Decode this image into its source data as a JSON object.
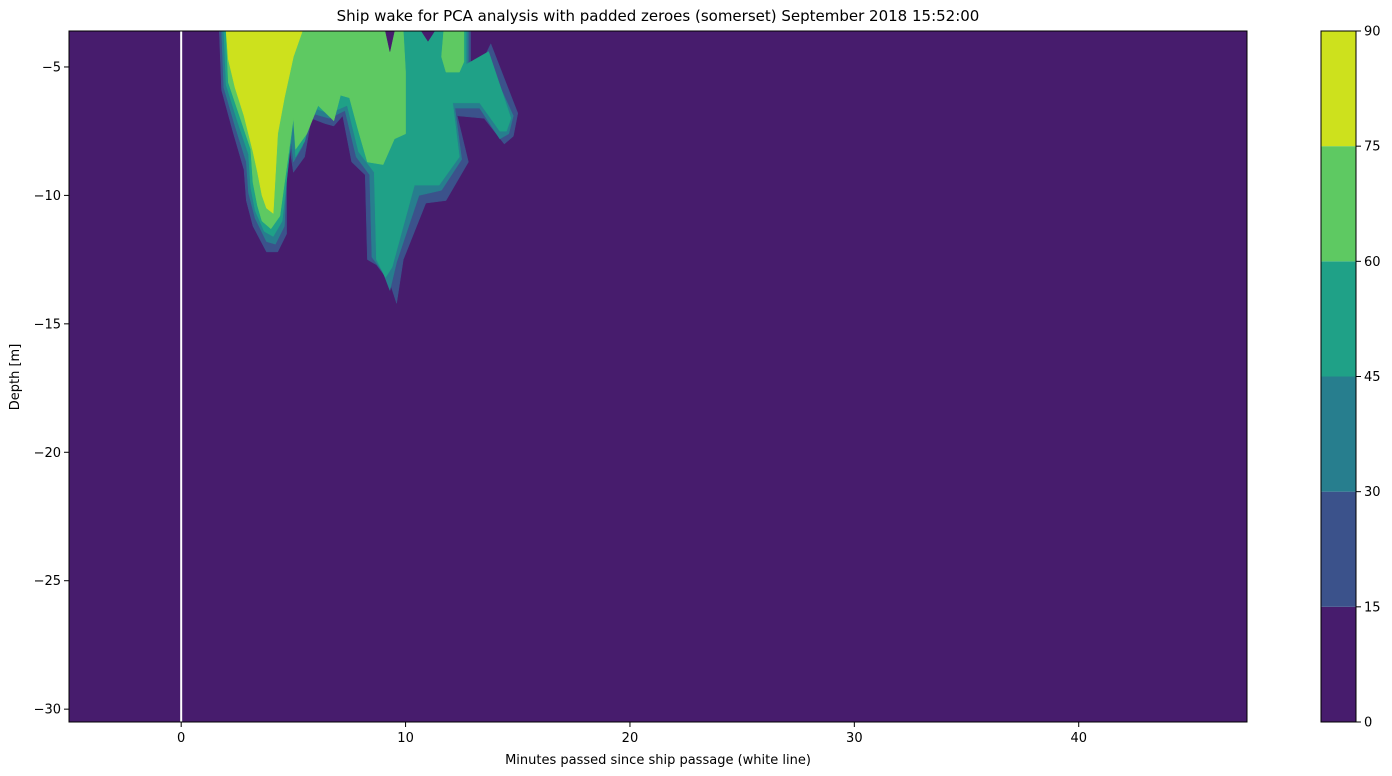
{
  "chart_data": {
    "type": "heatmap",
    "subtype": "filled-contour",
    "title": "Ship wake for PCA analysis with padded zeroes (somerset) September 2018 15:52:00",
    "xlabel": "Minutes passed since ship passage (white line)",
    "ylabel": "Depth [m]",
    "xlim": [
      -5,
      47.5
    ],
    "ylim": [
      -30.5,
      -3.6
    ],
    "xticks": [
      0,
      10,
      20,
      30,
      40
    ],
    "yticks": [
      -5,
      -10,
      -15,
      -20,
      -25,
      -30
    ],
    "grid": false,
    "marker_line": {
      "x": 0,
      "color": "#ffffff"
    },
    "colorbar": {
      "levels": [
        0,
        15,
        30,
        45,
        60,
        75,
        90
      ],
      "colors": [
        "#471c6d",
        "#3b528b",
        "#277e8e",
        "#1fa187",
        "#5ec962",
        "#cde11d"
      ]
    },
    "contour_regions": [
      {
        "level_min": 15,
        "points": [
          [
            1.7,
            -3.6
          ],
          [
            12.9,
            -3.6
          ],
          [
            12.9,
            -5.2
          ],
          [
            13.3,
            -5.0
          ],
          [
            13.8,
            -4.1
          ],
          [
            15.0,
            -6.8
          ],
          [
            14.8,
            -7.7
          ],
          [
            14.4,
            -8.0
          ],
          [
            13.5,
            -7.0
          ],
          [
            12.3,
            -6.9
          ],
          [
            12.8,
            -8.7
          ],
          [
            11.8,
            -10.2
          ],
          [
            10.9,
            -10.3
          ],
          [
            9.9,
            -12.5
          ],
          [
            9.6,
            -14.2
          ],
          [
            9.3,
            -13.4
          ],
          [
            8.7,
            -12.7
          ],
          [
            8.3,
            -12.5
          ],
          [
            8.2,
            -9.2
          ],
          [
            7.6,
            -8.7
          ],
          [
            7.2,
            -6.9
          ],
          [
            6.8,
            -7.3
          ],
          [
            6.4,
            -7.2
          ],
          [
            5.8,
            -7.0
          ],
          [
            5.5,
            -8.5
          ],
          [
            5.0,
            -9.1
          ],
          [
            4.7,
            -7.3
          ],
          [
            4.7,
            -11.5
          ],
          [
            4.3,
            -12.2
          ],
          [
            3.8,
            -12.2
          ],
          [
            3.2,
            -11.2
          ],
          [
            2.9,
            -10.2
          ],
          [
            2.8,
            -9.0
          ],
          [
            2.3,
            -7.5
          ],
          [
            1.8,
            -5.9
          ]
        ]
      },
      {
        "level_min": 30,
        "points": [
          [
            1.8,
            -3.6
          ],
          [
            12.8,
            -3.6
          ],
          [
            12.8,
            -5.0
          ],
          [
            13.6,
            -4.6
          ],
          [
            14.8,
            -6.9
          ],
          [
            14.6,
            -7.6
          ],
          [
            14.2,
            -7.8
          ],
          [
            13.3,
            -6.6
          ],
          [
            12.2,
            -6.6
          ],
          [
            12.5,
            -8.6
          ],
          [
            11.6,
            -9.8
          ],
          [
            10.6,
            -10.0
          ],
          [
            9.6,
            -12.6
          ],
          [
            9.3,
            -13.7
          ],
          [
            9.0,
            -13.0
          ],
          [
            8.5,
            -12.4
          ],
          [
            8.4,
            -9.2
          ],
          [
            7.8,
            -8.5
          ],
          [
            7.3,
            -6.7
          ],
          [
            6.6,
            -7.0
          ],
          [
            5.8,
            -6.8
          ],
          [
            5.4,
            -8.1
          ],
          [
            5.0,
            -8.7
          ],
          [
            4.8,
            -7.1
          ],
          [
            4.6,
            -11.2
          ],
          [
            4.2,
            -11.9
          ],
          [
            3.8,
            -11.8
          ],
          [
            3.3,
            -10.9
          ],
          [
            3.0,
            -9.9
          ],
          [
            2.9,
            -8.7
          ],
          [
            2.4,
            -7.3
          ],
          [
            1.9,
            -5.8
          ]
        ]
      },
      {
        "level_min": 45,
        "points": [
          [
            1.9,
            -3.6
          ],
          [
            12.7,
            -3.6
          ],
          [
            12.7,
            -4.9
          ],
          [
            13.7,
            -4.4
          ],
          [
            14.7,
            -7.0
          ],
          [
            14.5,
            -7.5
          ],
          [
            14.2,
            -7.5
          ],
          [
            13.3,
            -6.4
          ],
          [
            12.1,
            -6.4
          ],
          [
            12.4,
            -8.5
          ],
          [
            11.5,
            -9.6
          ],
          [
            10.4,
            -9.6
          ],
          [
            9.4,
            -12.8
          ],
          [
            9.1,
            -13.2
          ],
          [
            8.7,
            -12.5
          ],
          [
            8.6,
            -9.1
          ],
          [
            7.9,
            -8.3
          ],
          [
            7.4,
            -6.5
          ],
          [
            6.6,
            -6.8
          ],
          [
            5.9,
            -6.6
          ],
          [
            5.5,
            -7.9
          ],
          [
            5.1,
            -8.5
          ],
          [
            5.0,
            -7.0
          ],
          [
            4.5,
            -11.0
          ],
          [
            4.1,
            -11.6
          ],
          [
            3.7,
            -11.4
          ],
          [
            3.3,
            -10.6
          ],
          [
            3.1,
            -9.7
          ],
          [
            3.0,
            -8.4
          ],
          [
            2.5,
            -7.1
          ],
          [
            2.0,
            -5.7
          ]
        ]
      },
      {
        "level_min": 60,
        "points": [
          [
            2.0,
            -3.6
          ],
          [
            9.9,
            -3.6
          ],
          [
            10.0,
            -5.2
          ],
          [
            10.0,
            -7.6
          ],
          [
            9.5,
            -7.8
          ],
          [
            9.0,
            -8.8
          ],
          [
            8.3,
            -8.7
          ],
          [
            7.9,
            -7.5
          ],
          [
            7.5,
            -6.2
          ],
          [
            7.1,
            -6.1
          ],
          [
            6.8,
            -7.1
          ],
          [
            6.1,
            -6.5
          ],
          [
            5.6,
            -7.6
          ],
          [
            5.1,
            -8.2
          ],
          [
            5.0,
            -7.0
          ],
          [
            4.4,
            -10.8
          ],
          [
            4.0,
            -11.3
          ],
          [
            3.6,
            -11.0
          ],
          [
            3.4,
            -10.4
          ],
          [
            3.2,
            -9.5
          ],
          [
            3.1,
            -8.2
          ],
          [
            2.6,
            -6.9
          ],
          [
            2.1,
            -5.6
          ]
        ]
      },
      {
        "level_min": 60,
        "points": [
          [
            11.7,
            -3.6
          ],
          [
            12.6,
            -3.6
          ],
          [
            12.6,
            -4.8
          ],
          [
            12.4,
            -5.2
          ],
          [
            11.8,
            -5.2
          ],
          [
            11.6,
            -4.6
          ]
        ]
      },
      {
        "level_min": 75,
        "points": [
          [
            2.0,
            -3.6
          ],
          [
            5.4,
            -3.6
          ],
          [
            5.0,
            -4.6
          ],
          [
            4.6,
            -6.2
          ],
          [
            4.3,
            -7.6
          ],
          [
            4.2,
            -9.2
          ],
          [
            4.1,
            -10.7
          ],
          [
            3.8,
            -10.5
          ],
          [
            3.6,
            -10.0
          ],
          [
            3.4,
            -9.1
          ],
          [
            3.2,
            -8.3
          ],
          [
            2.8,
            -6.9
          ],
          [
            2.4,
            -5.8
          ],
          [
            2.1,
            -4.7
          ]
        ]
      },
      {
        "level_min": 0,
        "points": [
          [
            9.1,
            -3.6
          ],
          [
            9.5,
            -3.6
          ],
          [
            9.3,
            -4.4
          ]
        ]
      },
      {
        "level_min": 0,
        "points": [
          [
            10.7,
            -3.6
          ],
          [
            11.3,
            -3.6
          ],
          [
            11.0,
            -4.0
          ]
        ]
      }
    ]
  }
}
